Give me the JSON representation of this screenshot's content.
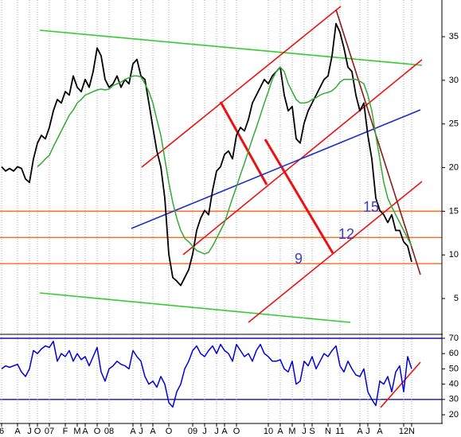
{
  "chart_data": [
    {
      "type": "line",
      "ylim": [
        0.9,
        39.2
      ],
      "yticks": [
        5,
        10,
        15,
        20,
        25,
        30,
        35
      ],
      "series": [
        {
          "color": "#000000",
          "values": [
            20.1,
            19.6,
            19.9,
            19.6,
            20.1,
            19.9,
            18.7,
            18.3,
            21,
            22.8,
            23.7,
            23.3,
            24.6,
            26.5,
            27.8,
            27.4,
            28.7,
            28.3,
            30.5,
            29.2,
            28.7,
            30.1,
            29.2,
            31,
            33.7,
            32.8,
            30.1,
            29.2,
            29.6,
            30.5,
            29.2,
            30.1,
            29.6,
            31.9,
            32.4,
            30.5,
            30.1,
            27.4,
            24.6,
            21.9,
            20.1,
            16.5,
            10.1,
            7.4,
            7,
            6.5,
            7.4,
            8.3,
            10.1,
            12.8,
            14.2,
            15.1,
            14.6,
            17.4,
            19.6,
            20.1,
            21.5,
            21.9,
            21,
            23.7,
            24.6,
            24.2,
            25.5,
            27.4,
            28.3,
            29.2,
            30.1,
            29.6,
            30.5,
            31,
            31.5,
            28.3,
            26.5,
            27,
            23.3,
            22.8,
            25.1,
            26.5,
            27.4,
            28.3,
            29.2,
            30.1,
            30.5,
            32.8,
            36.5,
            35.5,
            33.7,
            31.5,
            31,
            28.3,
            26.5,
            27.4,
            23.7,
            21,
            16.5,
            15.1,
            14.6,
            13.7,
            14.6,
            12.8,
            12.8,
            11.5,
            11,
            9.2
          ]
        },
        {
          "color": "#33aa33",
          "values": [
            null,
            null,
            null,
            null,
            null,
            null,
            null,
            null,
            null,
            20.1,
            20.5,
            21,
            21.4,
            22.4,
            23.3,
            24.2,
            25.1,
            26,
            26.6,
            27.4,
            27.8,
            28.3,
            28.5,
            28.7,
            28.9,
            29,
            28.9,
            29,
            29.4,
            29.6,
            29.8,
            30.1,
            30.3,
            30.5,
            30.5,
            30.4,
            29.6,
            28.7,
            27.4,
            25.5,
            23.7,
            21,
            18.3,
            16,
            14.2,
            12.8,
            11.9,
            11.5,
            11,
            10.5,
            10.3,
            10.1,
            10.3,
            11,
            11.9,
            12.8,
            13.7,
            15.1,
            16.5,
            17.8,
            19.2,
            20.5,
            21.9,
            23.3,
            24.6,
            26,
            27.4,
            28.7,
            30.1,
            31,
            31.5,
            31,
            29.6,
            28.7,
            27.8,
            27.4,
            27.4,
            27.5,
            27.8,
            28,
            28.3,
            28.5,
            28.6,
            28.8,
            29.2,
            29.8,
            30.1,
            30.1,
            30.1,
            30.1,
            29.9,
            29.6,
            28.3,
            26.5,
            23.7,
            21,
            18.3,
            16.5,
            15.5,
            14.6,
            13.7,
            12.8,
            11.9,
            11
          ]
        }
      ],
      "reference_lines": [
        15,
        12,
        9
      ],
      "reference_color": "#ff6a1a",
      "annotations": [
        "9",
        "12",
        "15"
      ],
      "annotation_color": "#3a3acc"
    },
    {
      "type": "line",
      "categories": [
        "6",
        null,
        null,
        null,
        "A",
        null,
        null,
        "J",
        null,
        "O",
        null,
        null,
        "07",
        null,
        null,
        null,
        "F",
        null,
        null,
        "M",
        null,
        "A",
        null,
        null,
        "O",
        null,
        null,
        "08",
        null,
        null,
        null,
        null,
        null,
        "A",
        null,
        "J",
        null,
        null,
        "A",
        null,
        null,
        null,
        "O",
        null,
        null,
        null,
        null,
        null,
        "09",
        null,
        null,
        "J",
        null,
        null,
        "J",
        null,
        "A",
        null,
        null,
        "O",
        null,
        null,
        null,
        null,
        null,
        null,
        null,
        "10",
        null,
        null,
        "A",
        null,
        null,
        "M",
        null,
        null,
        "J",
        null,
        "S",
        null,
        null,
        null,
        "N",
        null,
        null,
        "11",
        null,
        null,
        null,
        null,
        "A",
        null,
        "J",
        null,
        null,
        "A",
        null,
        null,
        null,
        null,
        null,
        "12",
        null,
        "N"
      ],
      "ylim": [
        14.3,
        72.6
      ],
      "yticks": [
        20,
        30,
        40,
        50,
        60,
        70
      ],
      "series": [
        {
          "color": "#0000dd",
          "values": [
            50,
            52,
            51,
            52,
            53,
            48,
            45,
            50,
            62,
            60,
            63,
            65,
            64,
            68,
            55,
            60,
            58,
            62,
            55,
            60,
            56,
            58,
            52,
            58,
            64,
            48,
            42,
            50,
            52,
            55,
            53,
            52,
            50,
            62,
            58,
            55,
            45,
            40,
            42,
            38,
            45,
            40,
            28,
            25,
            35,
            40,
            50,
            55,
            62,
            65,
            60,
            58,
            62,
            65,
            60,
            66,
            62,
            60,
            55,
            66,
            62,
            58,
            60,
            55,
            62,
            66,
            60,
            58,
            55,
            55,
            56,
            50,
            48,
            55,
            40,
            42,
            55,
            52,
            58,
            50,
            55,
            60,
            58,
            62,
            65,
            52,
            48,
            55,
            50,
            46,
            45,
            50,
            35,
            30,
            26,
            42,
            40,
            45,
            35,
            48,
            52,
            35,
            58,
            50
          ]
        }
      ],
      "reference_lines": [
        70,
        30
      ],
      "reference_color": "#1010bb"
    }
  ]
}
